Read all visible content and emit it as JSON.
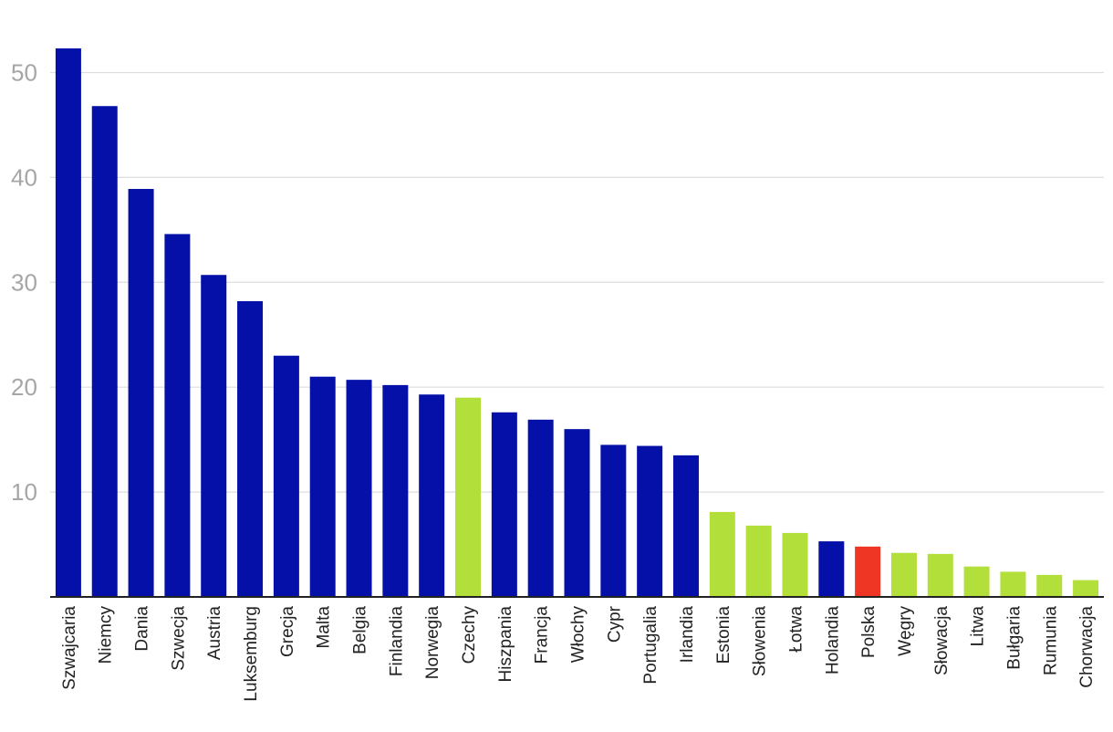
{
  "chart_data": {
    "type": "bar",
    "title": "",
    "xlabel": "",
    "ylabel": "",
    "ylim": [
      0,
      53
    ],
    "yticks": [
      10,
      20,
      30,
      40,
      50
    ],
    "grid": true,
    "categories": [
      "Szwajcaria",
      "Niemcy",
      "Dania",
      "Szwecja",
      "Austria",
      "Luksemburg",
      "Grecja",
      "Malta",
      "Belgia",
      "Finlandia",
      "Norwegia",
      "Czechy",
      "Hiszpania",
      "Francja",
      "Włochy",
      "Cypr",
      "Portugalia",
      "Irlandia",
      "Estonia",
      "Słowenia",
      "Łotwa",
      "Holandia",
      "Polska",
      "Węgry",
      "Słowacja",
      "Litwa",
      "Bułgaria",
      "Rumunia",
      "Chorwacja"
    ],
    "values": [
      52.3,
      46.8,
      38.9,
      34.6,
      30.7,
      28.2,
      23.0,
      21.0,
      20.7,
      20.2,
      19.3,
      19.0,
      17.6,
      16.9,
      16.0,
      14.5,
      14.4,
      13.5,
      8.1,
      6.8,
      6.1,
      5.3,
      4.8,
      4.2,
      4.1,
      2.9,
      2.4,
      2.1,
      1.6
    ],
    "bar_colors": [
      "#0410a8",
      "#0410a8",
      "#0410a8",
      "#0410a8",
      "#0410a8",
      "#0410a8",
      "#0410a8",
      "#0410a8",
      "#0410a8",
      "#0410a8",
      "#0410a8",
      "#b3df3a",
      "#0410a8",
      "#0410a8",
      "#0410a8",
      "#0410a8",
      "#0410a8",
      "#0410a8",
      "#b3df3a",
      "#b3df3a",
      "#b3df3a",
      "#0410a8",
      "#ef3523",
      "#b3df3a",
      "#b3df3a",
      "#b3df3a",
      "#b3df3a",
      "#b3df3a",
      "#b3df3a"
    ],
    "colors": {
      "default": "#0410a8",
      "highlight": "#b3df3a",
      "poland": "#ef3523",
      "grid": "#dddddd",
      "axis": "#222222",
      "ytick": "#a6a6a6"
    }
  }
}
